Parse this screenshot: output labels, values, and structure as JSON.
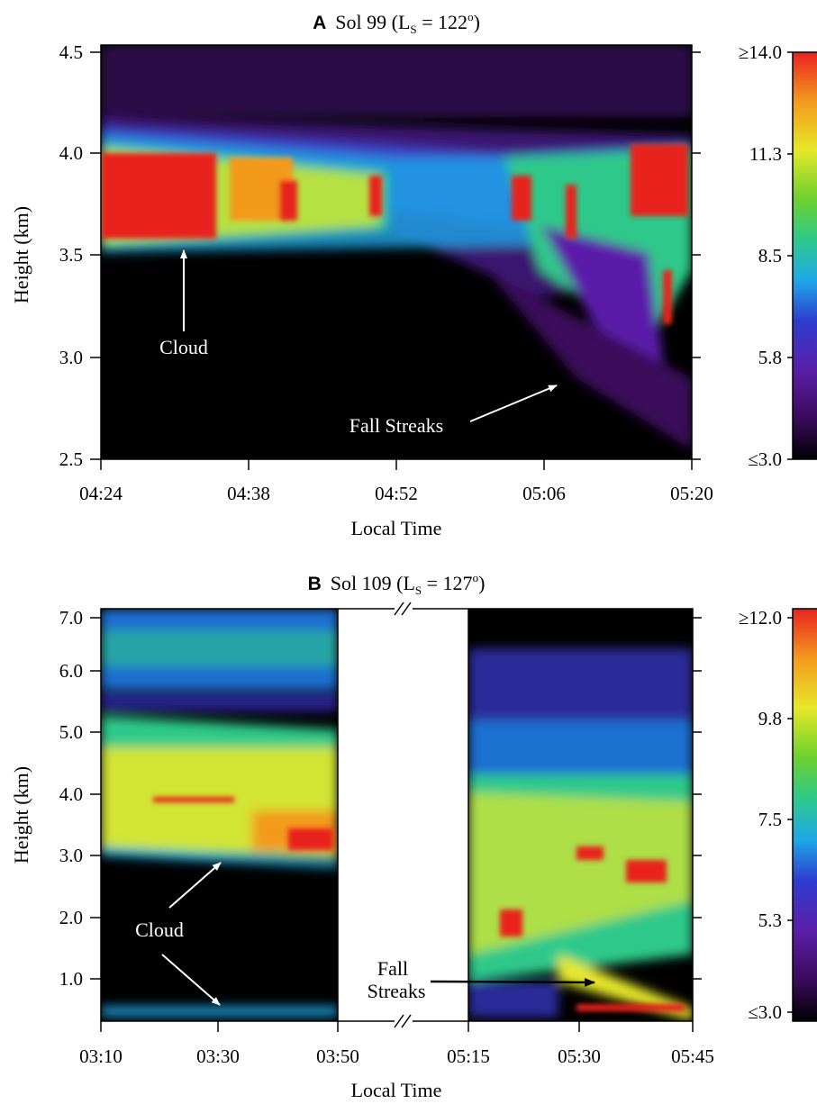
{
  "panels": [
    {
      "id": "A",
      "letter": "A",
      "title_pre": "Sol 99 (L",
      "title_sub": "S",
      "title_mid": " = 122",
      "title_sup": "o",
      "title_post": ")",
      "ylabel": "Height (km)",
      "xlabel": "Local Time",
      "colorbar_labels": [
        "≥14.0",
        "11.3",
        "8.5",
        "5.8",
        "≤3.0"
      ],
      "annotations": [
        "Cloud",
        "Fall Streaks"
      ]
    },
    {
      "id": "B",
      "letter": "B",
      "title_pre": "Sol 109 (L",
      "title_sub": "S",
      "title_mid": " = 127",
      "title_sup": "o",
      "title_post": ")",
      "ylabel": "Height (km)",
      "xlabel": "Local Time",
      "colorbar_labels": [
        "≥12.0",
        "9.8",
        "7.5",
        "5.3",
        "≤3.0"
      ],
      "annotations": [
        "Cloud",
        "Fall",
        "Streaks"
      ]
    }
  ],
  "chart_data": [
    {
      "type": "heatmap",
      "panel": "A",
      "title": "Sol 99 (LS = 122o)",
      "xlabel": "Local Time",
      "ylabel": "Height (km)",
      "x_ticks": [
        "04:24",
        "04:38",
        "04:52",
        "05:06",
        "05:20"
      ],
      "y_ticks": [
        "2.5",
        "3.0",
        "3.5",
        "4.0",
        "4.5"
      ],
      "ylim": [
        2.5,
        4.55
      ],
      "xlim": [
        "04:24",
        "05:20"
      ],
      "colorbar_ticks": [
        "≥14.0",
        "11.3",
        "8.5",
        "5.8",
        "≤3.0"
      ],
      "colorbar_range": [
        3.0,
        14.0
      ],
      "colormap": [
        "#000000",
        "#3a0a5a",
        "#5a1fa8",
        "#2d3ccf",
        "#1fa8e8",
        "#2ec98a",
        "#6cd12e",
        "#e6e82a",
        "#f39a1e",
        "#e8231f"
      ],
      "features": [
        {
          "label": "Cloud",
          "time_start": "04:24",
          "time_end": "05:20",
          "height_km": [
            3.5,
            4.0
          ]
        },
        {
          "label": "Fall Streaks",
          "time_start": "05:00",
          "time_end": "05:20",
          "height_km": [
            2.6,
            3.6
          ]
        }
      ]
    },
    {
      "type": "heatmap",
      "panel": "B",
      "title": "Sol 109 (LS = 127o)",
      "xlabel": "Local Time",
      "ylabel": "Height (km)",
      "x_ticks": [
        "03:10",
        "03:30",
        "03:50",
        "05:15",
        "05:30",
        "05:45"
      ],
      "y_ticks": [
        "1.0",
        "2.0",
        "3.0",
        "4.0",
        "5.0",
        "6.0",
        "7.0"
      ],
      "ylim": [
        0.3,
        7.1
      ],
      "x_segments": [
        [
          "03:10",
          "03:50"
        ],
        [
          "05:15",
          "05:45"
        ]
      ],
      "colorbar_ticks": [
        "≥12.0",
        "9.8",
        "7.5",
        "5.3",
        "≤3.0"
      ],
      "colorbar_range": [
        3.0,
        12.0
      ],
      "colormap": [
        "#000000",
        "#3a0a5a",
        "#5a1fa8",
        "#2d3ccf",
        "#1fa8e8",
        "#2ec98a",
        "#6cd12e",
        "#e6e82a",
        "#f39a1e",
        "#e8231f"
      ],
      "features": [
        {
          "label": "Cloud",
          "time_start": "03:10",
          "time_end": "03:50",
          "height_km": [
            2.9,
            5.2
          ]
        },
        {
          "label": "Cloud",
          "time_start": "03:10",
          "time_end": "03:50",
          "height_km": [
            0.3,
            0.6
          ]
        },
        {
          "label": "Fall Streaks",
          "time_start": "05:25",
          "time_end": "05:45",
          "height_km": [
            0.3,
            1.5
          ]
        }
      ]
    }
  ]
}
